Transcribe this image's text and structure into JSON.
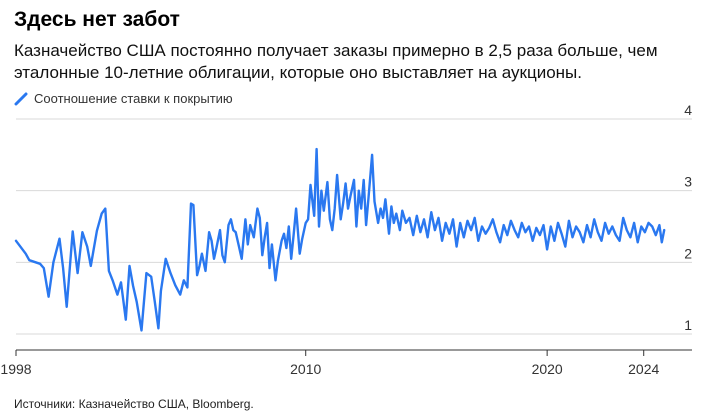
{
  "title": "Здесь нет забот",
  "subtitle": "Казначейство США постоянно получает заказы примерно в 2,5 раза больше, чем эталонные 10-летние облигации, которые оно выставляет на аукционы.",
  "source": "Источники: Казначейство США, Bloomberg.",
  "colors": {
    "series": "#2a78f0",
    "grid": "#d9d9d9",
    "axis": "#333333"
  },
  "chart_data": {
    "type": "line",
    "title": "",
    "xlabel": "",
    "ylabel": "",
    "xlim": [
      1998,
      2026
    ],
    "ylim": [
      1,
      4
    ],
    "x_ticks": [
      {
        "value": 1998,
        "label": "1998"
      },
      {
        "value": 2010,
        "label": "2010"
      },
      {
        "value": 2020,
        "label": "2020"
      },
      {
        "value": 2024,
        "label": "2024"
      }
    ],
    "y_ticks": [
      {
        "value": 1,
        "label": "1"
      },
      {
        "value": 2,
        "label": "2"
      },
      {
        "value": 3,
        "label": "3"
      },
      {
        "value": 4,
        "label": "4"
      }
    ],
    "grid": true,
    "legend_position": "top-left",
    "series": [
      {
        "name": "Соотношение ставки к покрытию",
        "x": [
          1998.0,
          1998.4,
          1998.55,
          1999.0,
          1999.15,
          1999.35,
          1999.55,
          1999.8,
          1999.95,
          2000.1,
          2000.35,
          2000.55,
          2000.75,
          2000.95,
          2001.1,
          2001.35,
          2001.55,
          2001.7,
          2001.85,
          2002.0,
          2002.2,
          2002.35,
          2002.55,
          2002.7,
          2002.85,
          2003.0,
          2003.2,
          2003.4,
          2003.6,
          2003.75,
          2003.9,
          2004.0,
          2004.2,
          2004.4,
          2004.6,
          2004.8,
          2004.95,
          2005.1,
          2005.25,
          2005.35,
          2005.5,
          2005.6,
          2005.7,
          2005.85,
          2006.0,
          2006.1,
          2006.2,
          2006.3,
          2006.45,
          2006.55,
          2006.65,
          2006.8,
          2006.9,
          2007.0,
          2007.1,
          2007.25,
          2007.35,
          2007.5,
          2007.6,
          2007.7,
          2007.85,
          2008.0,
          2008.1,
          2008.2,
          2008.3,
          2008.4,
          2008.5,
          2008.6,
          2008.75,
          2008.85,
          2009.0,
          2009.1,
          2009.2,
          2009.3,
          2009.4,
          2009.5,
          2009.6,
          2009.75,
          2009.85,
          2010.0,
          2010.1,
          2010.2,
          2010.35,
          2010.45,
          2010.55,
          2010.65,
          2010.75,
          2010.9,
          2011.0,
          2011.1,
          2011.2,
          2011.3,
          2011.45,
          2011.55,
          2011.65,
          2011.75,
          2011.85,
          2012.0,
          2012.1,
          2012.2,
          2012.3,
          2012.4,
          2012.5,
          2012.6,
          2012.75,
          2012.85,
          2013.0,
          2013.1,
          2013.2,
          2013.3,
          2013.45,
          2013.55,
          2013.65,
          2013.75,
          2013.9,
          2014.0,
          2014.15,
          2014.3,
          2014.45,
          2014.6,
          2014.75,
          2014.9,
          2015.05,
          2015.2,
          2015.35,
          2015.5,
          2015.65,
          2015.8,
          2015.95,
          2016.1,
          2016.25,
          2016.4,
          2016.55,
          2016.7,
          2016.85,
          2017.0,
          2017.15,
          2017.3,
          2017.45,
          2017.6,
          2017.75,
          2017.9,
          2018.05,
          2018.2,
          2018.35,
          2018.5,
          2018.65,
          2018.8,
          2018.95,
          2019.1,
          2019.25,
          2019.4,
          2019.55,
          2019.7,
          2019.85,
          2020.0,
          2020.15,
          2020.3,
          2020.45,
          2020.6,
          2020.75,
          2020.9,
          2021.05,
          2021.2,
          2021.35,
          2021.5,
          2021.65,
          2021.8,
          2021.95,
          2022.1,
          2022.25,
          2022.4,
          2022.55,
          2022.7,
          2022.85,
          2023.0,
          2023.15,
          2023.3,
          2023.45,
          2023.6,
          2023.75,
          2023.9,
          2024.05,
          2024.2,
          2024.35,
          2024.5,
          2024.65,
          2024.75,
          2024.85
        ],
        "values": [
          2.3,
          2.12,
          2.03,
          1.98,
          1.92,
          1.52,
          2.0,
          2.33,
          1.92,
          1.38,
          2.43,
          1.85,
          2.42,
          2.22,
          1.95,
          2.44,
          2.68,
          2.75,
          1.88,
          1.75,
          1.55,
          1.72,
          1.2,
          1.95,
          1.67,
          1.45,
          1.05,
          1.85,
          1.8,
          1.45,
          1.08,
          1.6,
          2.05,
          1.85,
          1.68,
          1.55,
          1.75,
          1.65,
          2.82,
          2.8,
          1.82,
          1.95,
          2.12,
          1.88,
          2.42,
          2.3,
          2.05,
          2.2,
          2.45,
          2.1,
          2.0,
          2.52,
          2.6,
          2.45,
          2.42,
          2.2,
          2.05,
          2.6,
          2.25,
          2.52,
          2.35,
          2.75,
          2.62,
          2.1,
          2.35,
          2.55,
          1.92,
          2.25,
          1.75,
          2.02,
          2.3,
          2.4,
          2.2,
          2.5,
          2.05,
          2.38,
          2.75,
          2.12,
          2.32,
          2.55,
          2.6,
          3.08,
          2.65,
          3.58,
          2.5,
          3.0,
          2.72,
          3.12,
          2.6,
          2.45,
          2.75,
          3.22,
          2.6,
          2.82,
          3.1,
          2.75,
          2.92,
          3.15,
          2.5,
          3.0,
          2.75,
          3.15,
          2.52,
          2.9,
          3.5,
          2.85,
          2.55,
          2.75,
          2.62,
          2.88,
          2.4,
          2.78,
          2.55,
          2.68,
          2.45,
          2.72,
          2.55,
          2.62,
          2.38,
          2.65,
          2.42,
          2.6,
          2.35,
          2.7,
          2.45,
          2.62,
          2.3,
          2.55,
          2.4,
          2.6,
          2.22,
          2.55,
          2.35,
          2.58,
          2.45,
          2.62,
          2.3,
          2.5,
          2.4,
          2.48,
          2.6,
          2.42,
          2.28,
          2.52,
          2.38,
          2.58,
          2.45,
          2.35,
          2.55,
          2.42,
          2.5,
          2.3,
          2.48,
          2.38,
          2.52,
          2.18,
          2.5,
          2.3,
          2.55,
          2.4,
          2.22,
          2.58,
          2.35,
          2.5,
          2.42,
          2.28,
          2.52,
          2.35,
          2.6,
          2.42,
          2.3,
          2.55,
          2.4,
          2.5,
          2.38,
          2.3,
          2.62,
          2.45,
          2.35,
          2.55,
          2.28,
          2.5,
          2.42,
          2.55,
          2.5,
          2.38,
          2.52,
          2.28,
          2.45
        ]
      }
    ]
  }
}
